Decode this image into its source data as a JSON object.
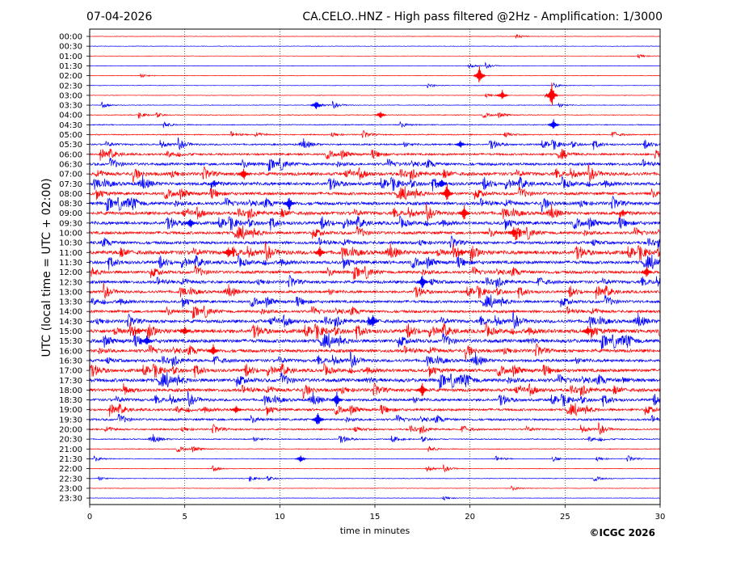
{
  "header": {
    "date": "07-04-2026",
    "title": "CA.CELO..HNZ - High pass filtered @2Hz - Amplification: 1/3000"
  },
  "footer": {
    "copyright": "©ICGC 2026"
  },
  "colors": {
    "red_trace": "#ff0000",
    "blue_trace": "#0000ff",
    "frame": "#000000",
    "grid": "#000000",
    "background": "#ffffff"
  },
  "chart_data": {
    "type": "line",
    "title": "CA.CELO..HNZ - High pass filtered @2Hz - Amplification: 1/3000",
    "xlabel": "time in minutes",
    "ylabel": "UTC (local time = UTC + 02:00)",
    "xlim": [
      0,
      30
    ],
    "x_ticks": [
      "0",
      "5",
      "10",
      "15",
      "20",
      "25",
      "30"
    ],
    "grid": "vertical dotted lines at 5, 10, 15, 20, 25 minutes",
    "trace_colors": "alternating red / blue per row",
    "rows": [
      {
        "label": "00:00",
        "color": "red",
        "activity": 0.06
      },
      {
        "label": "00:30",
        "color": "blue",
        "activity": 0.06
      },
      {
        "label": "01:00",
        "color": "red",
        "activity": 0.06
      },
      {
        "label": "01:30",
        "color": "blue",
        "activity": 0.07
      },
      {
        "label": "02:00",
        "color": "red",
        "activity": 0.1
      },
      {
        "label": "02:30",
        "color": "blue",
        "activity": 0.1
      },
      {
        "label": "03:00",
        "color": "red",
        "activity": 0.12
      },
      {
        "label": "03:30",
        "color": "blue",
        "activity": 0.2
      },
      {
        "label": "04:00",
        "color": "red",
        "activity": 0.25
      },
      {
        "label": "04:30",
        "color": "blue",
        "activity": 0.35
      },
      {
        "label": "05:00",
        "color": "red",
        "activity": 0.4
      },
      {
        "label": "05:30",
        "color": "blue",
        "activity": 0.55
      },
      {
        "label": "06:00",
        "color": "red",
        "activity": 0.65
      },
      {
        "label": "06:30",
        "color": "blue",
        "activity": 0.75
      },
      {
        "label": "07:00",
        "color": "red",
        "activity": 0.85
      },
      {
        "label": "07:30",
        "color": "blue",
        "activity": 0.85
      },
      {
        "label": "08:00",
        "color": "red",
        "activity": 0.8
      },
      {
        "label": "08:30",
        "color": "blue",
        "activity": 0.85
      },
      {
        "label": "09:00",
        "color": "red",
        "activity": 0.85
      },
      {
        "label": "09:30",
        "color": "blue",
        "activity": 0.85
      },
      {
        "label": "10:00",
        "color": "red",
        "activity": 0.8
      },
      {
        "label": "10:30",
        "color": "blue",
        "activity": 0.8
      },
      {
        "label": "11:00",
        "color": "red",
        "activity": 0.95
      },
      {
        "label": "11:30",
        "color": "blue",
        "activity": 0.85
      },
      {
        "label": "12:00",
        "color": "red",
        "activity": 0.8
      },
      {
        "label": "12:30",
        "color": "blue",
        "activity": 0.8
      },
      {
        "label": "13:00",
        "color": "red",
        "activity": 0.75
      },
      {
        "label": "13:30",
        "color": "blue",
        "activity": 0.75
      },
      {
        "label": "14:00",
        "color": "red",
        "activity": 0.75
      },
      {
        "label": "14:30",
        "color": "blue",
        "activity": 0.85
      },
      {
        "label": "15:00",
        "color": "red",
        "activity": 0.95
      },
      {
        "label": "15:30",
        "color": "blue",
        "activity": 0.9
      },
      {
        "label": "16:00",
        "color": "red",
        "activity": 0.85
      },
      {
        "label": "16:30",
        "color": "blue",
        "activity": 0.8
      },
      {
        "label": "17:00",
        "color": "red",
        "activity": 0.85
      },
      {
        "label": "17:30",
        "color": "blue",
        "activity": 0.9
      },
      {
        "label": "18:00",
        "color": "red",
        "activity": 0.85
      },
      {
        "label": "18:30",
        "color": "blue",
        "activity": 0.75
      },
      {
        "label": "19:00",
        "color": "red",
        "activity": 0.7
      },
      {
        "label": "19:30",
        "color": "blue",
        "activity": 0.65
      },
      {
        "label": "20:00",
        "color": "red",
        "activity": 0.55
      },
      {
        "label": "20:30",
        "color": "blue",
        "activity": 0.4
      },
      {
        "label": "21:00",
        "color": "red",
        "activity": 0.3
      },
      {
        "label": "21:30",
        "color": "blue",
        "activity": 0.25
      },
      {
        "label": "22:00",
        "color": "red",
        "activity": 0.2
      },
      {
        "label": "22:30",
        "color": "blue",
        "activity": 0.18
      },
      {
        "label": "23:00",
        "color": "red",
        "activity": 0.12
      },
      {
        "label": "23:30",
        "color": "blue",
        "activity": 0.08
      }
    ],
    "events": [
      {
        "row": "02:00",
        "minute": 20.5,
        "amplitude": 1.4
      },
      {
        "row": "03:00",
        "minute": 24.3,
        "amplitude": 1.8
      },
      {
        "row": "03:00",
        "minute": 21.7,
        "amplitude": 0.8
      },
      {
        "row": "03:30",
        "minute": 11.9,
        "amplitude": 0.7
      },
      {
        "row": "04:00",
        "minute": 15.3,
        "amplitude": 0.6
      },
      {
        "row": "04:30",
        "minute": 24.4,
        "amplitude": 0.8
      },
      {
        "row": "05:30",
        "minute": 19.5,
        "amplitude": 0.6
      },
      {
        "row": "07:00",
        "minute": 8.1,
        "amplitude": 1.0
      },
      {
        "row": "07:30",
        "minute": 18.5,
        "amplitude": 0.8
      },
      {
        "row": "08:00",
        "minute": 18.8,
        "amplitude": 1.5
      },
      {
        "row": "08:30",
        "minute": 10.5,
        "amplitude": 1.2
      },
      {
        "row": "09:00",
        "minute": 19.7,
        "amplitude": 1.2
      },
      {
        "row": "09:30",
        "minute": 5.3,
        "amplitude": 0.9
      },
      {
        "row": "10:00",
        "minute": 22.3,
        "amplitude": 0.9
      },
      {
        "row": "11:00",
        "minute": 7.3,
        "amplitude": 1.0
      },
      {
        "row": "11:00",
        "minute": 12.1,
        "amplitude": 0.9
      },
      {
        "row": "12:30",
        "minute": 17.5,
        "amplitude": 1.2
      },
      {
        "row": "12:00",
        "minute": 29.3,
        "amplitude": 0.9
      },
      {
        "row": "14:30",
        "minute": 14.9,
        "amplitude": 1.0
      },
      {
        "row": "15:00",
        "minute": 5.0,
        "amplitude": 0.8
      },
      {
        "row": "15:00",
        "minute": 26.2,
        "amplitude": 0.8
      },
      {
        "row": "15:30",
        "minute": 3.0,
        "amplitude": 0.9
      },
      {
        "row": "16:00",
        "minute": 6.5,
        "amplitude": 0.9
      },
      {
        "row": "18:00",
        "minute": 17.5,
        "amplitude": 1.1
      },
      {
        "row": "18:30",
        "minute": 13.0,
        "amplitude": 1.2
      },
      {
        "row": "19:00",
        "minute": 7.7,
        "amplitude": 0.7
      },
      {
        "row": "19:30",
        "minute": 12.0,
        "amplitude": 1.3
      },
      {
        "row": "21:30",
        "minute": 11.1,
        "amplitude": 0.6
      }
    ]
  }
}
